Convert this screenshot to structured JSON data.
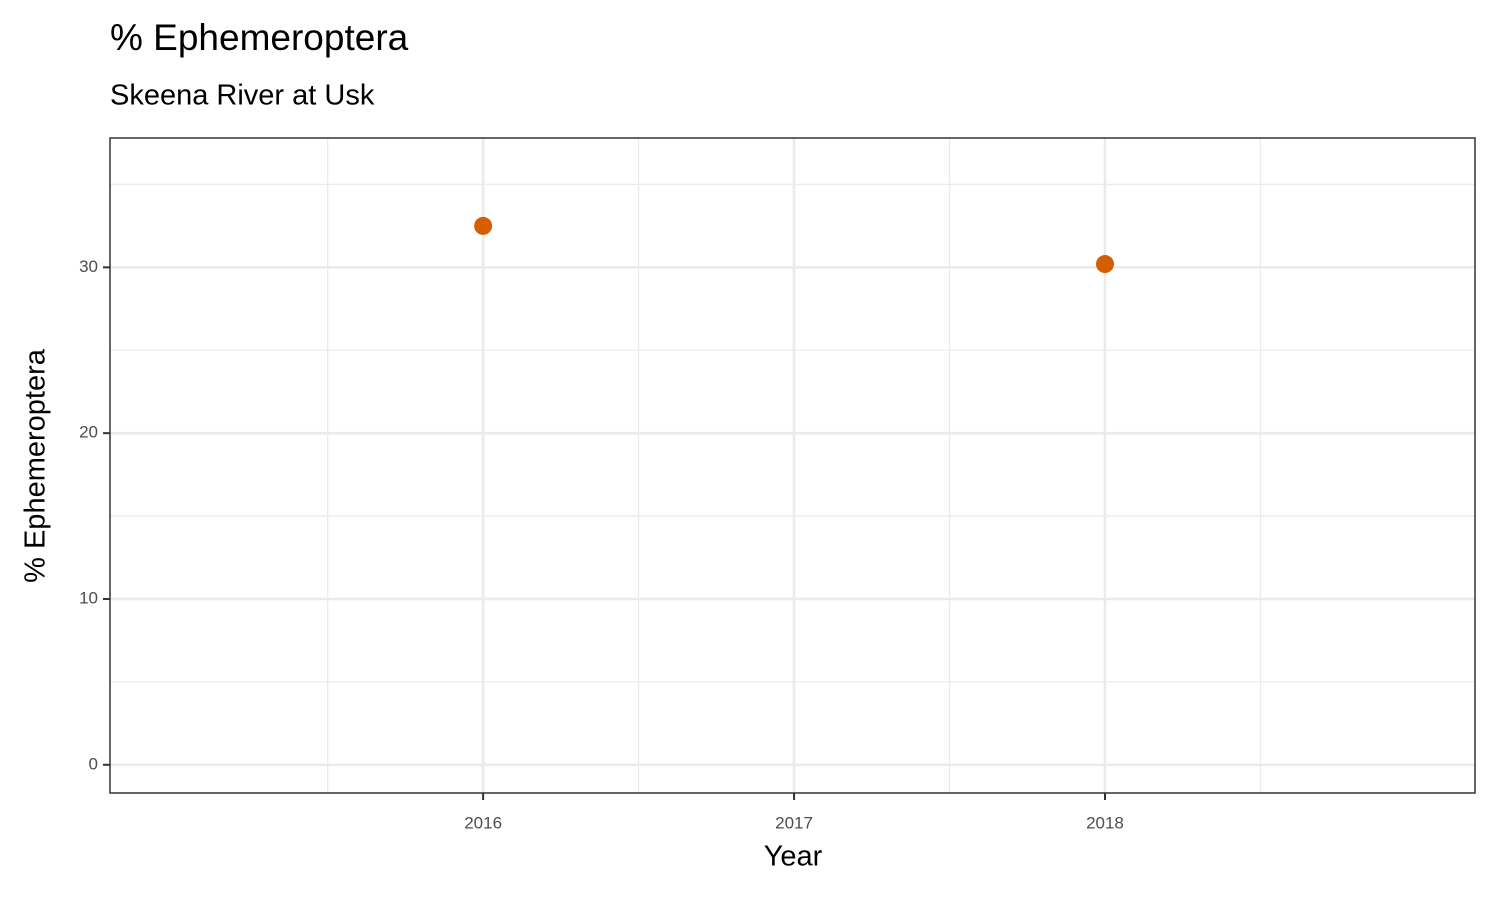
{
  "chart_data": {
    "type": "scatter",
    "title": "% Ephemeroptera",
    "subtitle": "Skeena River at Usk",
    "x_label": "Year",
    "y_label": "% Ephemeroptera",
    "x": [
      2016,
      2018
    ],
    "values": [
      32.5,
      30.2
    ],
    "color": "#d55e00",
    "xlim": [
      2014.8,
      2019.19
    ],
    "xticks": [
      2016,
      2017,
      2018
    ],
    "ylim": [
      -1.7,
      37.8
    ],
    "yticks": [
      0,
      10,
      20,
      30
    ],
    "grid": true
  }
}
